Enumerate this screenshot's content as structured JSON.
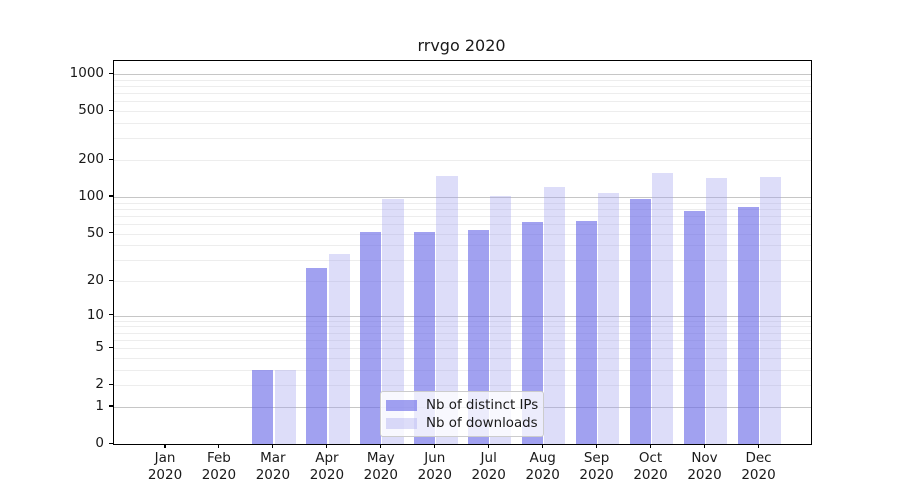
{
  "title": "rrvgo 2020",
  "colors": {
    "distinct_ips_bar": "rgba(106,106,232,0.63)",
    "downloads_bar": "rgba(162,162,238,0.36)",
    "major_gridline": "#c6c6c6",
    "minor_gridline": "#ededed",
    "axis": "#000000",
    "background": "#ffffff"
  },
  "legend": {
    "entries": [
      {
        "label": "Nb of distinct IPs"
      },
      {
        "label": "Nb of downloads"
      }
    ],
    "position": "lower center"
  },
  "chart_data": {
    "type": "bar",
    "title": "rrvgo 2020",
    "xlabel": "",
    "ylabel": "",
    "yscale": "log1p",
    "ylim": [
      0,
      1250
    ],
    "grid": "major+minor",
    "legend_position": "lower center",
    "yticks": [
      0,
      1,
      2,
      5,
      10,
      20,
      50,
      100,
      200,
      500,
      1000
    ],
    "categories": [
      "Jan 2020",
      "Feb 2020",
      "Mar 2020",
      "Apr 2020",
      "May 2020",
      "Jun 2020",
      "Jul 2020",
      "Aug 2020",
      "Sep 2020",
      "Oct 2020",
      "Nov 2020",
      "Dec 2020"
    ],
    "series": [
      {
        "name": "Nb of distinct IPs",
        "color": "rgba(106,106,232,0.63)",
        "values": [
          0,
          0,
          3,
          26,
          51,
          51,
          53,
          62,
          63,
          96,
          77,
          83
        ]
      },
      {
        "name": "Nb of downloads",
        "color": "rgba(162,162,238,0.36)",
        "values": [
          0,
          0,
          3,
          34,
          97,
          148,
          101,
          120,
          107,
          158,
          143,
          145
        ]
      }
    ]
  }
}
